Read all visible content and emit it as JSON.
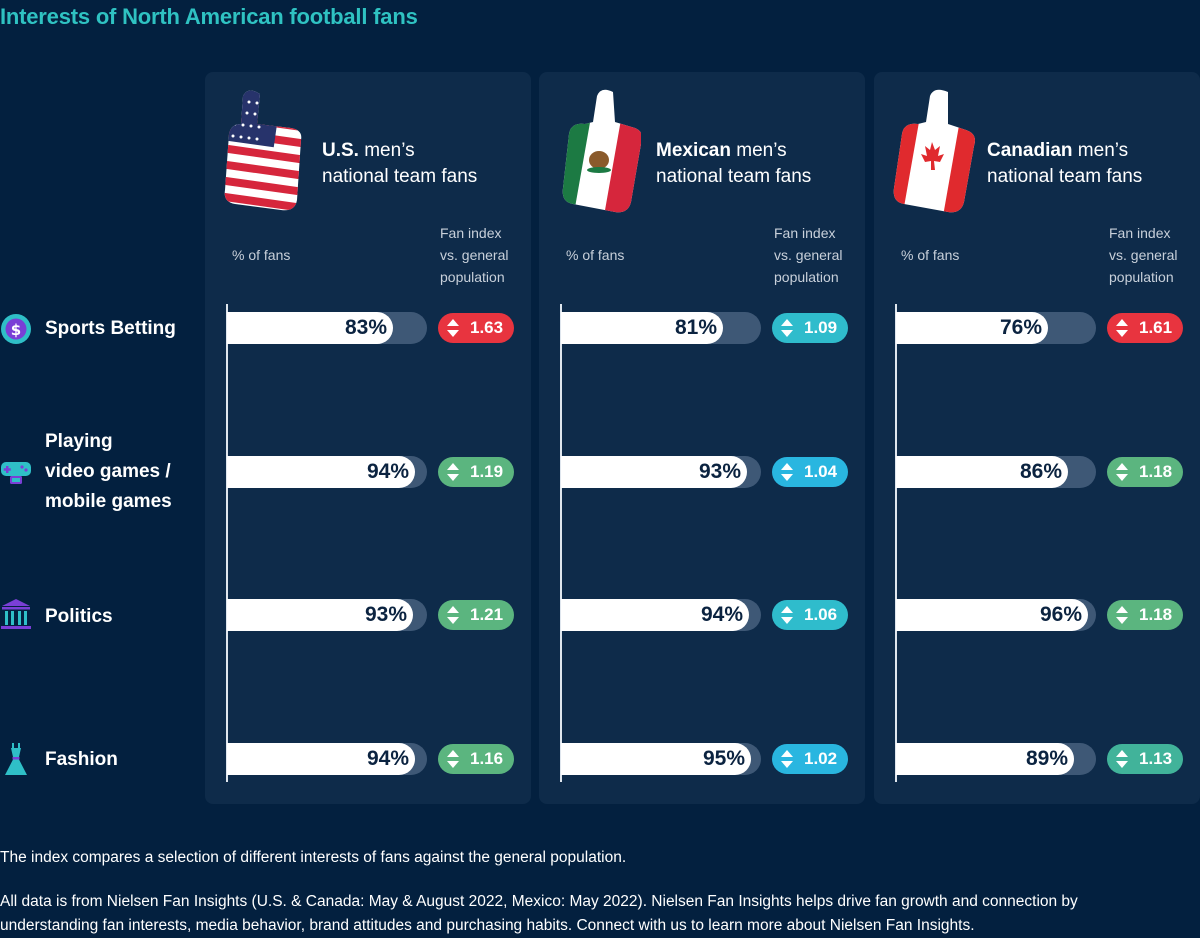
{
  "title": "Interests of North American football fans",
  "column_labels": {
    "pct": "% of fans",
    "idx_line1": "Fan index",
    "idx_line2": "vs. general",
    "idx_line3": "population"
  },
  "teams": [
    {
      "bold": "U.S.",
      "rest_line1": " men’s",
      "line2": "national team fans"
    },
    {
      "bold": "Mexican",
      "rest_line1": " men’s",
      "line2": "national team fans"
    },
    {
      "bold": "Canadian",
      "rest_line1": " men’s",
      "line2": "national team fans"
    }
  ],
  "interests": [
    {
      "lines": [
        "Sports Betting"
      ],
      "icon": "dollar-coin-icon"
    },
    {
      "lines": [
        "Playing",
        "video games /",
        "mobile games"
      ],
      "icon": "game-controller-icon"
    },
    {
      "lines": [
        "Politics"
      ],
      "icon": "government-building-icon"
    },
    {
      "lines": [
        "Fashion"
      ],
      "icon": "dress-icon"
    }
  ],
  "colors": {
    "background": "#03203f",
    "panel": "#0e2b4a",
    "title": "#2fc2c2",
    "index_high": "#e8343f",
    "index_green": "#5bb57f",
    "index_teal": "#2fbccc",
    "index_cyan": "#29b6e0"
  },
  "chart_data": {
    "type": "bar",
    "categories": [
      "Sports Betting",
      "Playing video games / mobile games",
      "Politics",
      "Fashion"
    ],
    "ylim": [
      0,
      100
    ],
    "series": [
      {
        "name": "U.S. men’s national team fans",
        "values": [
          83,
          94,
          93,
          94
        ],
        "labels": [
          "83%",
          "94%",
          "93%",
          "94%"
        ],
        "index": [
          "1.63",
          "1.19",
          "1.21",
          "1.16"
        ],
        "index_colors": [
          "#e8343f",
          "#5bb57f",
          "#5bb57f",
          "#5bb57f"
        ]
      },
      {
        "name": "Mexican men’s national team fans",
        "values": [
          81,
          93,
          94,
          95
        ],
        "labels": [
          "81%",
          "93%",
          "94%",
          "95%"
        ],
        "index": [
          "1.09",
          "1.04",
          "1.06",
          "1.02"
        ],
        "index_colors": [
          "#2fbccc",
          "#29b6e0",
          "#2fbccc",
          "#29b6e0"
        ]
      },
      {
        "name": "Canadian men’s national team fans",
        "values": [
          76,
          86,
          96,
          89
        ],
        "labels": [
          "76%",
          "86%",
          "96%",
          "89%"
        ],
        "index": [
          "1.61",
          "1.18",
          "1.18",
          "1.13"
        ],
        "index_colors": [
          "#e8343f",
          "#5bb57f",
          "#5bb57f",
          "#41b39a"
        ]
      }
    ]
  },
  "footnotes": [
    "The index compares a selection of different interests of fans against the general population.",
    "All data is from Nielsen Fan Insights (U.S. & Canada: May & August 2022, Mexico: May 2022). Nielsen Fan Insights helps drive fan growth and connection by",
    "understanding fan interests, media behavior, brand attitudes and purchasing habits. Connect with us to learn more about Nielsen Fan Insights."
  ]
}
